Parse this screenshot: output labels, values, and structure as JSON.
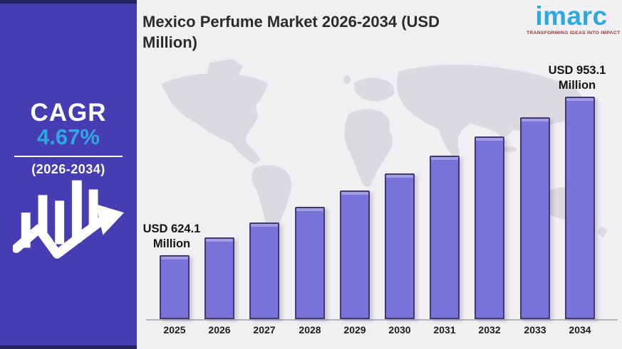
{
  "header": {
    "title": "Mexico Perfume Market 2026-2034 (USD Million)"
  },
  "logo": {
    "name": "imarc",
    "tagline": "TRANSFORMING IDEAS INTO IMPACT"
  },
  "sidebar": {
    "cagr_label": "CAGR",
    "cagr_value": "4.67%",
    "period": "(2026-2034)"
  },
  "colors": {
    "sidebar_bg": "#473db2",
    "sidebar_edge": "#262262",
    "accent_blue": "#2fa8e1",
    "bar_fill": "#7b73da",
    "bar_border": "#3f3a70",
    "page_bg": "#f1eff2",
    "map_gray": "#dcdae0",
    "tagline_red": "#9c3a33"
  },
  "chart_data": {
    "type": "bar",
    "title": "Mexico Perfume Market 2026-2034 (USD Million)",
    "unit": "USD Million",
    "categories": [
      "2025",
      "2026",
      "2027",
      "2028",
      "2029",
      "2030",
      "2031",
      "2032",
      "2033",
      "2034"
    ],
    "values": [
      624.1,
      661.6,
      692.5,
      724.8,
      758.7,
      794.1,
      831.2,
      870.0,
      910.6,
      953.1
    ],
    "labeled_values": {
      "2025": 624.1,
      "2034": 953.1
    },
    "cagr": "4.67%",
    "cagr_period": "2026-2034",
    "annotations": [
      {
        "category": "2025",
        "line1": "USD 624.1",
        "line2": "Million"
      },
      {
        "category": "2034",
        "line1": "USD 953.1",
        "line2": "Million"
      }
    ],
    "xlabel": "",
    "ylabel": "",
    "legend": false,
    "grid": false,
    "background": "world-map-silhouette"
  }
}
